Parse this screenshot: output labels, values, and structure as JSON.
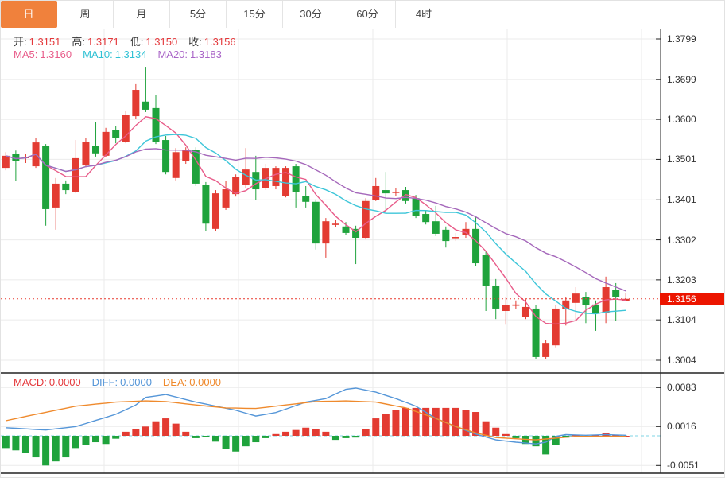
{
  "tabs": {
    "items": [
      {
        "label": "日",
        "selected": true
      },
      {
        "label": "周",
        "selected": false
      },
      {
        "label": "月",
        "selected": false
      },
      {
        "label": "5分",
        "selected": false
      },
      {
        "label": "15分",
        "selected": false
      },
      {
        "label": "30分",
        "selected": false
      },
      {
        "label": "60分",
        "selected": false
      },
      {
        "label": "4时",
        "selected": false
      }
    ]
  },
  "main_legend": {
    "open_label": "开:",
    "open": "1.3151",
    "high_label": "高:",
    "high": "1.3171",
    "low_label": "低:",
    "low": "1.3150",
    "close_label": "收:",
    "close": "1.3156",
    "ma5_label": "MA5:",
    "ma5": "1.3160",
    "ma10_label": "MA10:",
    "ma10": "1.3134",
    "ma20_label": "MA20:",
    "ma20": "1.3183"
  },
  "macd_legend": {
    "macd_label": "MACD:",
    "macd": "0.0000",
    "diff_label": "DIFF:",
    "diff": "0.0000",
    "dea_label": "DEA:",
    "dea": "0.0000"
  },
  "price_axis": {
    "ticks": [
      "1.3799",
      "1.3699",
      "1.3600",
      "1.3501",
      "1.3401",
      "1.3302",
      "1.3203",
      "1.3104",
      "1.3004"
    ],
    "current_price": "1.3156"
  },
  "macd_axis": {
    "ticks": [
      "0.0083",
      "0.0016",
      "-0.0051"
    ]
  },
  "colors": {
    "up": "#e33b32",
    "down": "#1fa33c",
    "ma5": "#e85c8a",
    "ma10": "#3ec6d9",
    "ma20": "#a568bb",
    "diff": "#5596d8",
    "dea": "#ef8a2d",
    "tab_accent": "#f0813c",
    "price_tag_bg": "#ec1500",
    "value_red": "#e4393c",
    "grid": "#ebebeb",
    "axis": "#222222",
    "price_dotted": "#e8392f",
    "macd_zero_dashed": "#7fd4e4"
  },
  "chart_data": {
    "type": "candlestick+macd",
    "title": "",
    "convention": "red = up candle, green = down candle (CN style)",
    "price_panel": {
      "ylim": [
        1.2955,
        1.3799
      ],
      "yticks": [
        1.3799,
        1.3699,
        1.36,
        1.3501,
        1.3401,
        1.3302,
        1.3203,
        1.3104,
        1.3004
      ],
      "current_price": 1.3156,
      "ma_periods": [
        5,
        10,
        20
      ],
      "ohlc": [
        [
          1.348,
          1.3519,
          1.3474,
          1.351
        ],
        [
          1.3514,
          1.3523,
          1.3447,
          1.3496
        ],
        [
          1.3504,
          1.3514,
          1.3492,
          1.3507
        ],
        [
          1.3484,
          1.3553,
          1.348,
          1.3543
        ],
        [
          1.3535,
          1.3539,
          1.3337,
          1.3378
        ],
        [
          1.3382,
          1.3455,
          1.3327,
          1.3441
        ],
        [
          1.3441,
          1.3449,
          1.3415,
          1.3425
        ],
        [
          1.3421,
          1.3549,
          1.3417,
          1.3504
        ],
        [
          1.3486,
          1.3555,
          1.3482,
          1.3545
        ],
        [
          1.3535,
          1.3594,
          1.3508,
          1.3516
        ],
        [
          1.351,
          1.3579,
          1.3506,
          1.3569
        ],
        [
          1.3573,
          1.3583,
          1.3541,
          1.3555
        ],
        [
          1.3545,
          1.3622,
          1.3541,
          1.3612
        ],
        [
          1.3608,
          1.3689,
          1.3602,
          1.3673
        ],
        [
          1.3644,
          1.373,
          1.3618,
          1.3624
        ],
        [
          1.3628,
          1.3661,
          1.3539,
          1.3545
        ],
        [
          1.3549,
          1.3559,
          1.3464,
          1.347
        ],
        [
          1.3455,
          1.3529,
          1.3449,
          1.3519
        ],
        [
          1.3496,
          1.3531,
          1.349,
          1.3523
        ],
        [
          1.3525,
          1.3531,
          1.3435,
          1.3441
        ],
        [
          1.3437,
          1.3445,
          1.3323,
          1.3342
        ],
        [
          1.3329,
          1.3425,
          1.3323,
          1.3417
        ],
        [
          1.3382,
          1.3447,
          1.3376,
          1.3427
        ],
        [
          1.3415,
          1.3464,
          1.3409,
          1.3457
        ],
        [
          1.3437,
          1.3529,
          1.3431,
          1.3476
        ],
        [
          1.347,
          1.351,
          1.3401,
          1.3427
        ],
        [
          1.3431,
          1.349,
          1.3425,
          1.348
        ],
        [
          1.3435,
          1.3484,
          1.3427,
          1.348
        ],
        [
          1.3411,
          1.3484,
          1.3407,
          1.348
        ],
        [
          1.3484,
          1.349,
          1.3382,
          1.3421
        ],
        [
          1.3411,
          1.3435,
          1.3382,
          1.3396
        ],
        [
          1.3396,
          1.3402,
          1.3278,
          1.3293
        ],
        [
          1.3293,
          1.3356,
          1.3258,
          1.3348
        ],
        [
          1.334,
          1.3352,
          1.3333,
          1.3342
        ],
        [
          1.3335,
          1.3346,
          1.3313,
          1.3319
        ],
        [
          1.3329,
          1.3337,
          1.3242,
          1.3307
        ],
        [
          1.3307,
          1.3405,
          1.3303,
          1.3398
        ],
        [
          1.3401,
          1.3455,
          1.3398,
          1.3435
        ],
        [
          1.3425,
          1.347,
          1.3372,
          1.3417
        ],
        [
          1.3419,
          1.3431,
          1.3411,
          1.3421
        ],
        [
          1.3425,
          1.3433,
          1.3392,
          1.3398
        ],
        [
          1.3405,
          1.3413,
          1.3356,
          1.3362
        ],
        [
          1.3366,
          1.3374,
          1.334,
          1.3346
        ],
        [
          1.3348,
          1.3386,
          1.3311,
          1.3317
        ],
        [
          1.3327,
          1.3335,
          1.3283,
          1.3299
        ],
        [
          1.3307,
          1.3319,
          1.3299,
          1.3309
        ],
        [
          1.3313,
          1.3346,
          1.3307,
          1.3329
        ],
        [
          1.3329,
          1.3362,
          1.3238,
          1.3244
        ],
        [
          1.3264,
          1.3274,
          1.3126,
          1.3189
        ],
        [
          1.3189,
          1.3205,
          1.3106,
          1.3132
        ],
        [
          1.3126,
          1.3159,
          1.3092,
          1.314
        ],
        [
          1.314,
          1.3152,
          1.313,
          1.3142
        ],
        [
          1.3112,
          1.3155,
          1.3106,
          1.3136
        ],
        [
          1.3132,
          1.314,
          1.3008,
          1.3012
        ],
        [
          1.3012,
          1.3055,
          1.3006,
          1.3047
        ],
        [
          1.3041,
          1.314,
          1.3036,
          1.3132
        ],
        [
          1.313,
          1.3161,
          1.309,
          1.3152
        ],
        [
          1.3146,
          1.3185,
          1.31,
          1.3169
        ],
        [
          1.3161,
          1.3173,
          1.3096,
          1.314
        ],
        [
          1.3142,
          1.3152,
          1.3077,
          1.3122
        ],
        [
          1.3122,
          1.3211,
          1.3096,
          1.3185
        ],
        [
          1.3179,
          1.3195,
          1.3102,
          1.3161
        ],
        [
          1.3151,
          1.3171,
          1.315,
          1.3156
        ]
      ]
    },
    "macd_panel": {
      "ylim": [
        -0.0064,
        0.0095
      ],
      "yticks": [
        0.0083,
        0.0016,
        -0.0051
      ],
      "histogram": [
        -0.0021,
        -0.0025,
        -0.003,
        -0.0037,
        -0.0051,
        -0.0044,
        -0.0037,
        -0.0021,
        -0.0016,
        -0.0011,
        -0.0014,
        -0.0005,
        0.0007,
        0.0011,
        0.0016,
        0.0025,
        0.003,
        0.0021,
        0.0007,
        -0.0004,
        -0.0001,
        -0.001,
        -0.0023,
        -0.0027,
        -0.0018,
        -0.0011,
        -0.0004,
        0.0003,
        0.0007,
        0.001,
        0.0014,
        0.0011,
        0.0007,
        -0.0007,
        -0.0004,
        -0.0003,
        0.0011,
        0.003,
        0.0038,
        0.0044,
        0.0048,
        0.0048,
        0.0048,
        0.0048,
        0.0048,
        0.0048,
        0.0045,
        0.0041,
        0.0025,
        0.0014,
        0.0003,
        -0.0004,
        -0.0014,
        -0.0018,
        -0.0032,
        -0.0016,
        -0.0003,
        0.0001,
        -0.0001,
        0.0001,
        0.0005,
        0.0001,
        0.0
      ],
      "diff_keypoints": [
        [
          0,
          0.0014
        ],
        [
          4,
          0.001
        ],
        [
          7,
          0.0016
        ],
        [
          11,
          0.0037
        ],
        [
          13,
          0.0053
        ],
        [
          14,
          0.0066
        ],
        [
          16,
          0.0071
        ],
        [
          19,
          0.0058
        ],
        [
          23,
          0.0044
        ],
        [
          25,
          0.0034
        ],
        [
          27,
          0.004
        ],
        [
          30,
          0.0058
        ],
        [
          32,
          0.0064
        ],
        [
          34,
          0.008
        ],
        [
          35,
          0.0082
        ],
        [
          37,
          0.0075
        ],
        [
          39,
          0.0064
        ],
        [
          41,
          0.0051
        ],
        [
          43,
          0.003
        ],
        [
          45,
          0.0016
        ],
        [
          47,
          0.0003
        ],
        [
          49,
          -0.0007
        ],
        [
          51,
          -0.0011
        ],
        [
          53,
          -0.0014
        ],
        [
          54,
          -0.0011
        ],
        [
          55,
          -0.0001
        ],
        [
          56,
          0.0002
        ],
        [
          58,
          0.0001
        ],
        [
          60,
          0.0002
        ],
        [
          62,
          0.0001
        ]
      ],
      "dea_keypoints": [
        [
          0,
          0.0026
        ],
        [
          3,
          0.0037
        ],
        [
          7,
          0.0051
        ],
        [
          11,
          0.0058
        ],
        [
          14,
          0.006
        ],
        [
          16,
          0.0059
        ],
        [
          19,
          0.0053
        ],
        [
          22,
          0.0048
        ],
        [
          25,
          0.0047
        ],
        [
          28,
          0.0053
        ],
        [
          31,
          0.0059
        ],
        [
          34,
          0.006
        ],
        [
          37,
          0.0058
        ],
        [
          40,
          0.0048
        ],
        [
          43,
          0.003
        ],
        [
          45,
          0.0016
        ],
        [
          47,
          0.0005
        ],
        [
          49,
          -0.0003
        ],
        [
          51,
          -0.0005
        ],
        [
          53,
          -0.0007
        ],
        [
          55,
          -0.0004
        ],
        [
          57,
          -0.0001
        ],
        [
          62,
          -0.0001
        ]
      ]
    }
  }
}
